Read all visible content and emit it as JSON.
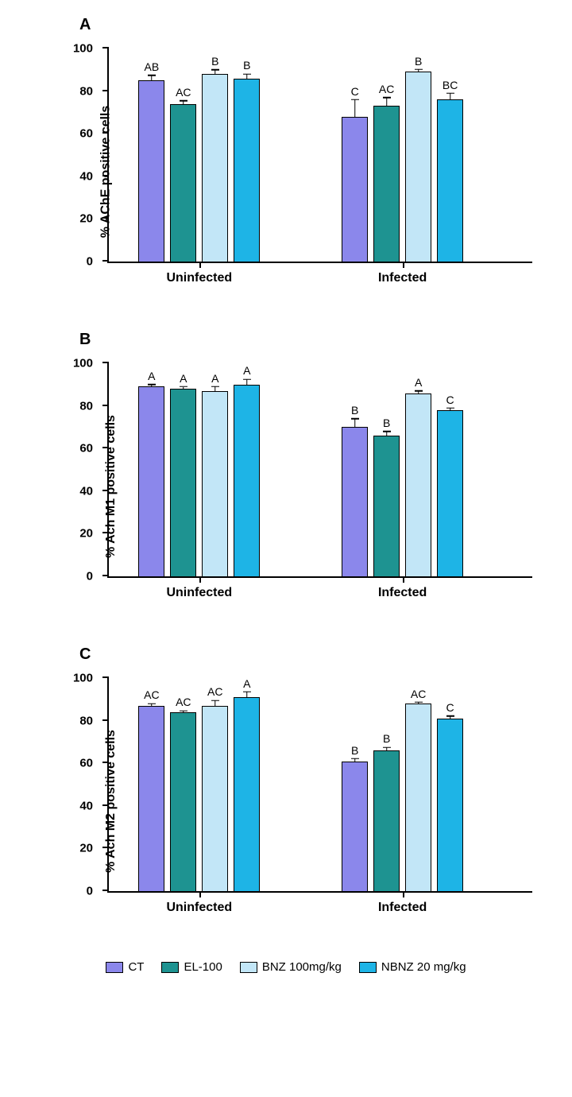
{
  "colors": {
    "CT": "#8b87eb",
    "EL100": "#1e9391",
    "BNZ100": "#c2e6f7",
    "NBNZ20": "#1eb4e6",
    "axis": "#000000",
    "background": "#ffffff"
  },
  "bar_width_pct": 6.2,
  "group_gap_pct": 9,
  "bar_gap_pct": 1.3,
  "group1_start_pct": 7,
  "group2_start_pct": 55,
  "axis": {
    "ymin": 0,
    "ymax": 100,
    "ytick_step": 20,
    "tick_fontsize": 15,
    "label_fontsize": 16
  },
  "legend": [
    {
      "key": "CT",
      "label": "CT"
    },
    {
      "key": "EL100",
      "label": "EL-100"
    },
    {
      "key": "BNZ100",
      "label": "BNZ 100mg/kg"
    },
    {
      "key": "NBNZ20",
      "label": "NBNZ 20 mg/kg"
    }
  ],
  "x_groups": [
    "Uninfected",
    "Infected"
  ],
  "panels": [
    {
      "letter": "A",
      "ylabel": "% AChE positive cells",
      "groups": [
        {
          "name": "Uninfected",
          "bars": [
            {
              "series": "CT",
              "value": 85,
              "err": 2.5,
              "sig": "AB"
            },
            {
              "series": "EL100",
              "value": 74,
              "err": 1.5,
              "sig": "AC"
            },
            {
              "series": "BNZ100",
              "value": 88,
              "err": 2,
              "sig": "B"
            },
            {
              "series": "NBNZ20",
              "value": 86,
              "err": 2,
              "sig": "B"
            }
          ]
        },
        {
          "name": "Infected",
          "bars": [
            {
              "series": "CT",
              "value": 68,
              "err": 8,
              "sig": "C"
            },
            {
              "series": "EL100",
              "value": 73,
              "err": 4,
              "sig": "AC"
            },
            {
              "series": "BNZ100",
              "value": 89,
              "err": 1.2,
              "sig": "B"
            },
            {
              "series": "NBNZ20",
              "value": 76,
              "err": 3,
              "sig": "BC"
            }
          ]
        }
      ]
    },
    {
      "letter": "B",
      "ylabel": "% Ach M1 positive cells",
      "groups": [
        {
          "name": "Uninfected",
          "bars": [
            {
              "series": "CT",
              "value": 89,
              "err": 1,
              "sig": "A"
            },
            {
              "series": "EL100",
              "value": 88,
              "err": 1,
              "sig": "A"
            },
            {
              "series": "BNZ100",
              "value": 87,
              "err": 2,
              "sig": "A"
            },
            {
              "series": "NBNZ20",
              "value": 90,
              "err": 2.5,
              "sig": "A"
            }
          ]
        },
        {
          "name": "Infected",
          "bars": [
            {
              "series": "CT",
              "value": 70,
              "err": 4,
              "sig": "B"
            },
            {
              "series": "EL100",
              "value": 66,
              "err": 2,
              "sig": "B"
            },
            {
              "series": "BNZ100",
              "value": 86,
              "err": 1,
              "sig": "A"
            },
            {
              "series": "NBNZ20",
              "value": 78,
              "err": 1,
              "sig": "C"
            }
          ]
        }
      ]
    },
    {
      "letter": "C",
      "ylabel": "% Ach M2 positive cells",
      "groups": [
        {
          "name": "Uninfected",
          "bars": [
            {
              "series": "CT",
              "value": 87,
              "err": 1,
              "sig": "AC"
            },
            {
              "series": "EL100",
              "value": 84,
              "err": 0.7,
              "sig": "AC"
            },
            {
              "series": "BNZ100",
              "value": 87,
              "err": 2.5,
              "sig": "AC"
            },
            {
              "series": "NBNZ20",
              "value": 91,
              "err": 2.5,
              "sig": "A"
            }
          ]
        },
        {
          "name": "Infected",
          "bars": [
            {
              "series": "CT",
              "value": 61,
              "err": 1.2,
              "sig": "B"
            },
            {
              "series": "EL100",
              "value": 66,
              "err": 1.5,
              "sig": "B"
            },
            {
              "series": "BNZ100",
              "value": 88,
              "err": 0.7,
              "sig": "AC"
            },
            {
              "series": "NBNZ20",
              "value": 81,
              "err": 1.2,
              "sig": "C"
            }
          ]
        }
      ]
    }
  ]
}
